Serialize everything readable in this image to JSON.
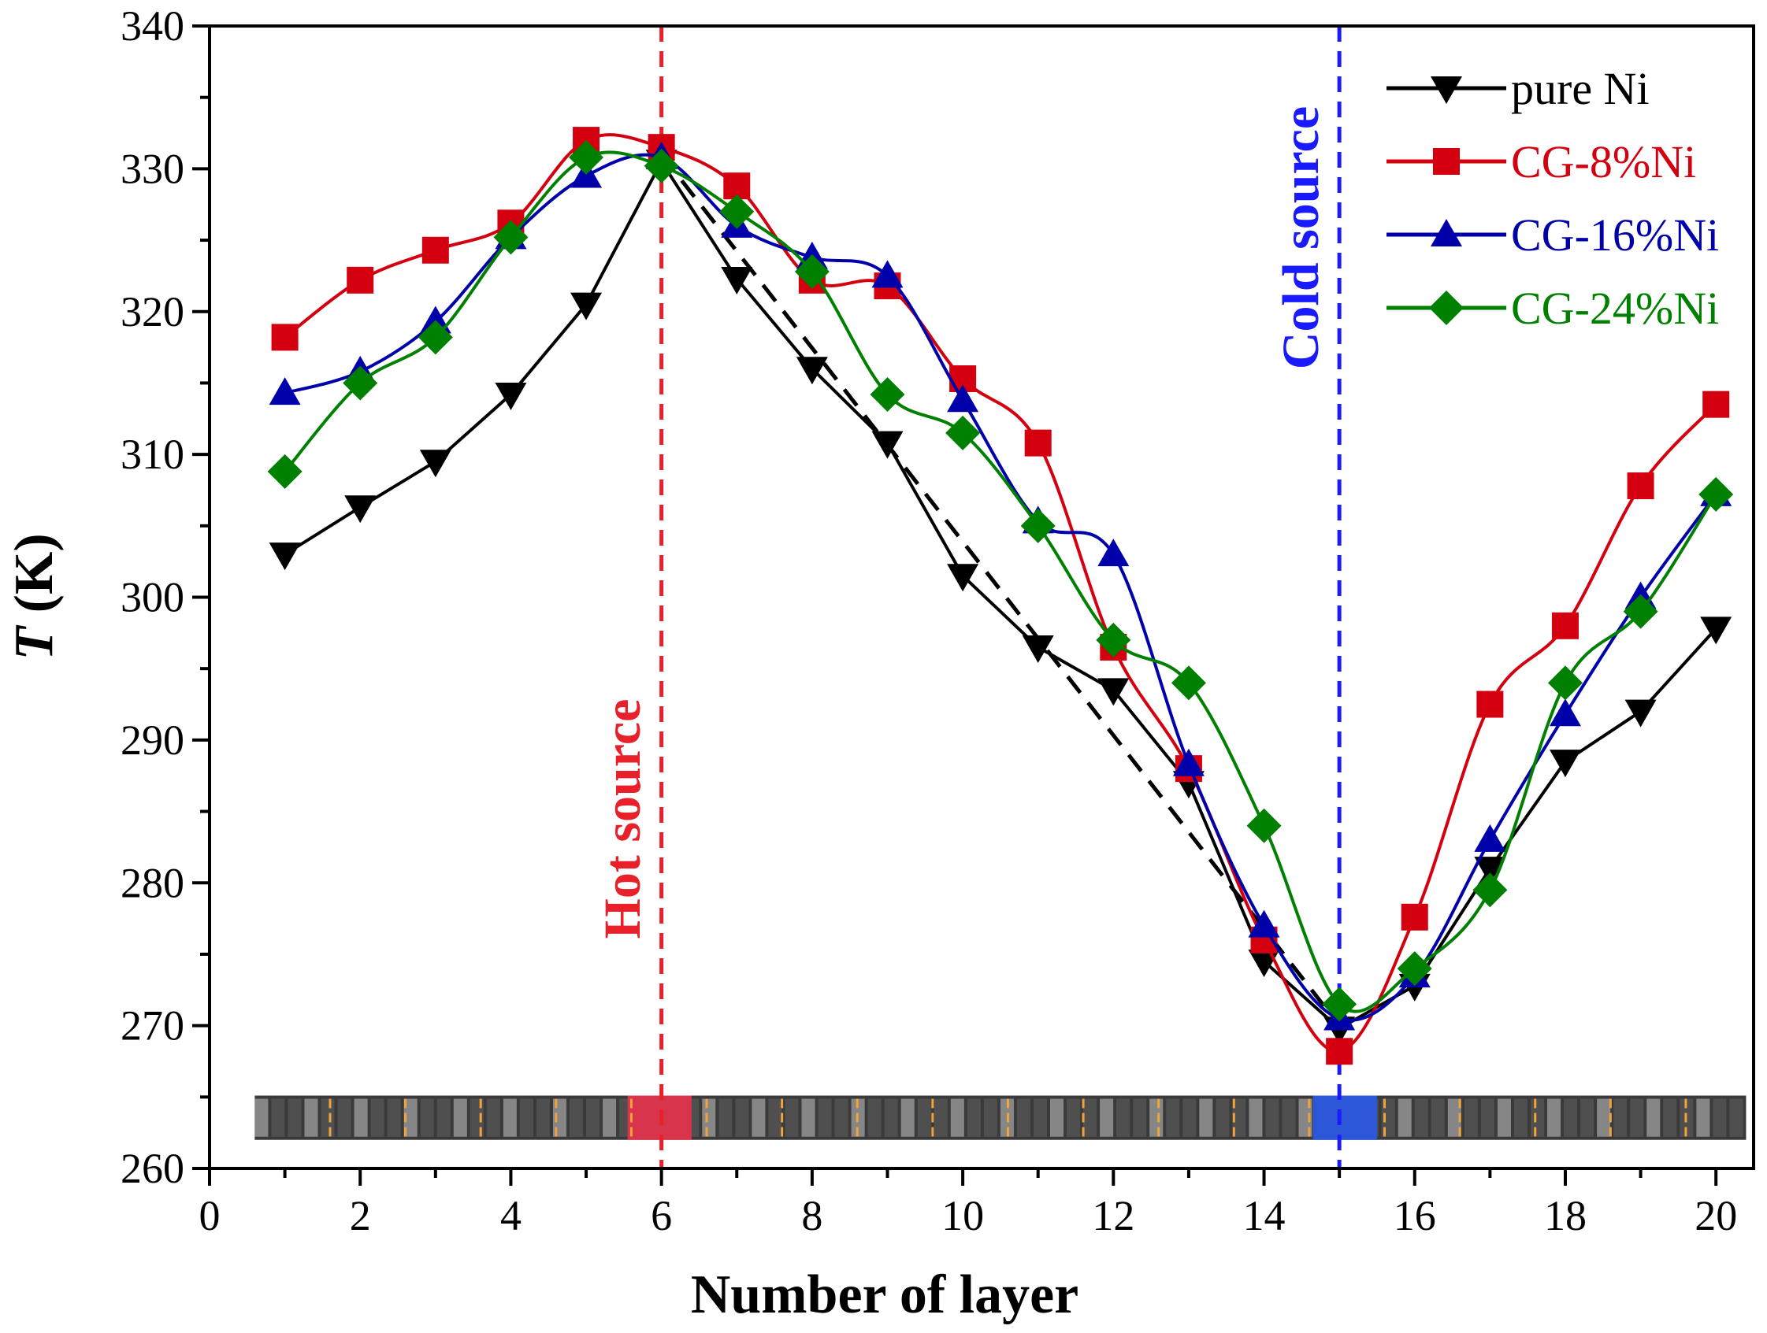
{
  "chart_data": {
    "type": "line",
    "title": "",
    "xlabel": "Number of layer",
    "ylabel_italic": "T",
    "ylabel_unit": " (K)",
    "xlim": [
      0,
      20.5
    ],
    "ylim": [
      260,
      340
    ],
    "xticks": [
      0,
      2,
      4,
      6,
      8,
      10,
      12,
      14,
      16,
      18,
      20
    ],
    "yticks": [
      260,
      270,
      280,
      290,
      300,
      310,
      320,
      330,
      340
    ],
    "grid": false,
    "legend_position": "top-right",
    "x": [
      1,
      2,
      3,
      4,
      5,
      6,
      7,
      8,
      9,
      10,
      11,
      12,
      13,
      14,
      15,
      16,
      17,
      18,
      19,
      20
    ],
    "series": [
      {
        "name": "pure Ni",
        "color": "#000000",
        "marker": "triangle-down",
        "smooth": false,
        "values": [
          303.0,
          306.3,
          309.5,
          314.2,
          320.5,
          330.5,
          322.3,
          316.0,
          310.8,
          301.5,
          296.5,
          293.5,
          287.0,
          274.5,
          269.8,
          272.8,
          281.0,
          288.5,
          292.0,
          297.8
        ]
      },
      {
        "name": "CG-8%Ni",
        "color": "#d4000f",
        "marker": "square",
        "smooth": true,
        "values": [
          318.2,
          322.2,
          324.3,
          326.2,
          332.0,
          331.5,
          328.8,
          322.2,
          321.8,
          315.3,
          310.8,
          296.5,
          288.0,
          276.0,
          268.2,
          277.6,
          292.5,
          298.0,
          307.8,
          313.5
        ]
      },
      {
        "name": "CG-16%Ni",
        "color": "#0000aa",
        "marker": "triangle-up",
        "smooth": true,
        "values": [
          314.3,
          315.8,
          319.3,
          325.2,
          329.5,
          330.8,
          326.0,
          323.8,
          322.5,
          313.8,
          305.3,
          303.0,
          288.3,
          277.0,
          270.5,
          273.5,
          283.0,
          291.8,
          300.0,
          307.2
        ]
      },
      {
        "name": "CG-24%Ni",
        "color": "#008000",
        "marker": "diamond",
        "smooth": true,
        "values": [
          308.8,
          315.0,
          318.2,
          325.2,
          330.8,
          330.2,
          327.0,
          322.8,
          314.2,
          311.5,
          305.0,
          297.0,
          294.0,
          284.0,
          271.5,
          274.0,
          279.5,
          294.0,
          299.0,
          307.2
        ]
      }
    ],
    "reference_line": {
      "style": "dashed",
      "color": "#000000",
      "x": [
        6,
        15
      ],
      "y": [
        331,
        270
      ]
    },
    "vertical_markers": [
      {
        "x": 6,
        "label": "Hot source",
        "color": "#e8202a"
      },
      {
        "x": 15,
        "label": "Cold source",
        "color": "#1a1aff"
      }
    ]
  }
}
